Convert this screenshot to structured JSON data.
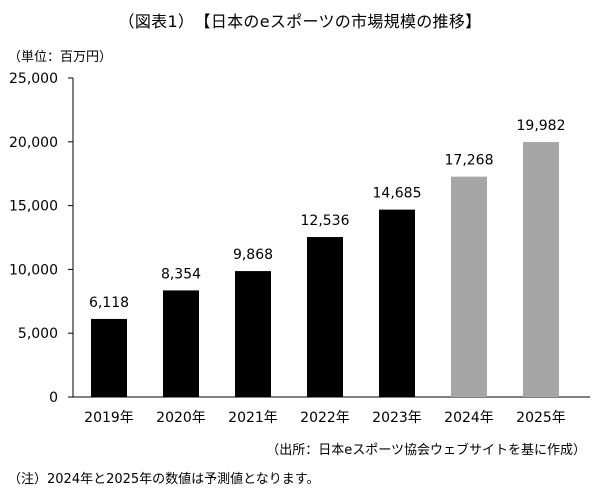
{
  "header": {
    "title": "（図表1）　【日本のeスポーツの市場規模の推移】",
    "unit": "（単位：百万円）"
  },
  "footer": {
    "source": "（出所：日本eスポーツ協会ウェブサイトを基に作成）",
    "note": "（注）2024年と2025年の数値は予測値となります。"
  },
  "colors": {
    "actual": "#000000",
    "forecast": "#a6a6a6",
    "axis": "#000000"
  },
  "chart_data": {
    "type": "bar",
    "title": "（図表1）　【日本のeスポーツの市場規模の推移】",
    "ylabel": "（単位：百万円）",
    "categories": [
      "2019年",
      "2020年",
      "2021年",
      "2022年",
      "2023年",
      "2024年",
      "2025年"
    ],
    "values": [
      6118,
      8354,
      9868,
      12536,
      14685,
      17268,
      19982
    ],
    "value_labels": [
      "6,118",
      "8,354",
      "9,868",
      "12,536",
      "14,685",
      "17,268",
      "19,982"
    ],
    "forecast": [
      false,
      false,
      false,
      false,
      false,
      true,
      true
    ],
    "ylim": [
      0,
      25000
    ],
    "yticks": [
      0,
      5000,
      10000,
      15000,
      20000,
      25000
    ],
    "ytick_labels": [
      "0",
      "5,000",
      "10,000",
      "15,000",
      "20,000",
      "25,000"
    ],
    "grid": false,
    "legend": "none"
  }
}
